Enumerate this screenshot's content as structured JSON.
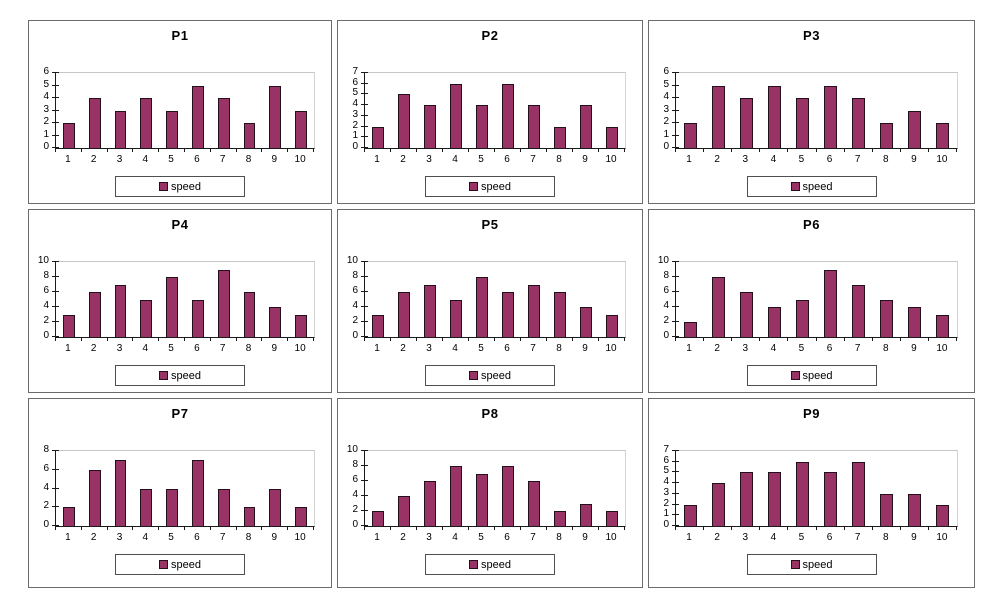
{
  "page": {
    "background": "#ffffff"
  },
  "colors": {
    "bar_fill": "#993366",
    "bar_border": "#24101b",
    "axis_line": "#1a1a1a",
    "gridline": "#c6c6c6",
    "panel_border": "#6b6b6b",
    "legend_border": "#4f4f4f",
    "text": "#000000"
  },
  "legend_label": "speed",
  "chart_data": [
    {
      "type": "bar",
      "title": "P1",
      "categories": [
        "1",
        "2",
        "3",
        "4",
        "5",
        "6",
        "7",
        "8",
        "9",
        "10"
      ],
      "series": [
        {
          "name": "speed",
          "values": [
            2,
            4,
            3,
            4,
            3,
            5,
            4,
            2,
            5,
            3
          ]
        }
      ],
      "xlabel": "",
      "ylabel": "",
      "ylim": [
        0,
        6
      ],
      "ystep": 1,
      "grid": "top-line-only",
      "legend_position": "bottom"
    },
    {
      "type": "bar",
      "title": "P2",
      "categories": [
        "1",
        "2",
        "3",
        "4",
        "5",
        "6",
        "7",
        "8",
        "9",
        "10"
      ],
      "series": [
        {
          "name": "speed",
          "values": [
            2,
            5,
            4,
            6,
            4,
            6,
            4,
            2,
            4,
            2
          ]
        }
      ],
      "xlabel": "",
      "ylabel": "",
      "ylim": [
        0,
        7
      ],
      "ystep": 1,
      "grid": "top-line-only",
      "legend_position": "bottom"
    },
    {
      "type": "bar",
      "title": "P3",
      "categories": [
        "1",
        "2",
        "3",
        "4",
        "5",
        "6",
        "7",
        "8",
        "9",
        "10"
      ],
      "series": [
        {
          "name": "speed",
          "values": [
            2,
            5,
            4,
            5,
            4,
            5,
            4,
            2,
            3,
            2
          ]
        }
      ],
      "xlabel": "",
      "ylabel": "",
      "ylim": [
        0,
        6
      ],
      "ystep": 1,
      "grid": "top-line-only",
      "legend_position": "bottom"
    },
    {
      "type": "bar",
      "title": "P4",
      "categories": [
        "1",
        "2",
        "3",
        "4",
        "5",
        "6",
        "7",
        "8",
        "9",
        "10"
      ],
      "series": [
        {
          "name": "speed",
          "values": [
            3,
            6,
            7,
            5,
            8,
            5,
            9,
            6,
            4,
            3
          ]
        }
      ],
      "xlabel": "",
      "ylabel": "",
      "ylim": [
        0,
        10
      ],
      "ystep": 2,
      "grid": "top-line-only",
      "legend_position": "bottom"
    },
    {
      "type": "bar",
      "title": "P5",
      "categories": [
        "1",
        "2",
        "3",
        "4",
        "5",
        "6",
        "7",
        "8",
        "9",
        "10"
      ],
      "series": [
        {
          "name": "speed",
          "values": [
            3,
            6,
            7,
            5,
            8,
            6,
            7,
            6,
            4,
            3
          ]
        }
      ],
      "xlabel": "",
      "ylabel": "",
      "ylim": [
        0,
        10
      ],
      "ystep": 2,
      "grid": "top-line-only",
      "legend_position": "bottom"
    },
    {
      "type": "bar",
      "title": "P6",
      "categories": [
        "1",
        "2",
        "3",
        "4",
        "5",
        "6",
        "7",
        "8",
        "9",
        "10"
      ],
      "series": [
        {
          "name": "speed",
          "values": [
            2,
            8,
            6,
            4,
            5,
            9,
            7,
            5,
            4,
            3
          ]
        }
      ],
      "xlabel": "",
      "ylabel": "",
      "ylim": [
        0,
        10
      ],
      "ystep": 2,
      "grid": "top-line-only",
      "legend_position": "bottom"
    },
    {
      "type": "bar",
      "title": "P7",
      "categories": [
        "1",
        "2",
        "3",
        "4",
        "5",
        "6",
        "7",
        "8",
        "9",
        "10"
      ],
      "series": [
        {
          "name": "speed",
          "values": [
            2,
            6,
            7,
            4,
            4,
            7,
            4,
            2,
            4,
            2
          ]
        }
      ],
      "xlabel": "",
      "ylabel": "",
      "ylim": [
        0,
        8
      ],
      "ystep": 2,
      "grid": "top-line-only",
      "legend_position": "bottom"
    },
    {
      "type": "bar",
      "title": "P8",
      "categories": [
        "1",
        "2",
        "3",
        "4",
        "5",
        "6",
        "7",
        "8",
        "9",
        "10"
      ],
      "series": [
        {
          "name": "speed",
          "values": [
            2,
            4,
            6,
            8,
            7,
            8,
            6,
            2,
            3,
            2
          ]
        }
      ],
      "xlabel": "",
      "ylabel": "",
      "ylim": [
        0,
        10
      ],
      "ystep": 2,
      "grid": "top-line-only",
      "legend_position": "bottom"
    },
    {
      "type": "bar",
      "title": "P9",
      "categories": [
        "1",
        "2",
        "3",
        "4",
        "5",
        "6",
        "7",
        "8",
        "9",
        "10"
      ],
      "series": [
        {
          "name": "speed",
          "values": [
            2,
            4,
            5,
            5,
            6,
            5,
            6,
            3,
            3,
            2
          ]
        }
      ],
      "xlabel": "",
      "ylabel": "",
      "ylim": [
        0,
        7
      ],
      "ystep": 1,
      "grid": "top-line-only",
      "legend_position": "bottom"
    }
  ]
}
